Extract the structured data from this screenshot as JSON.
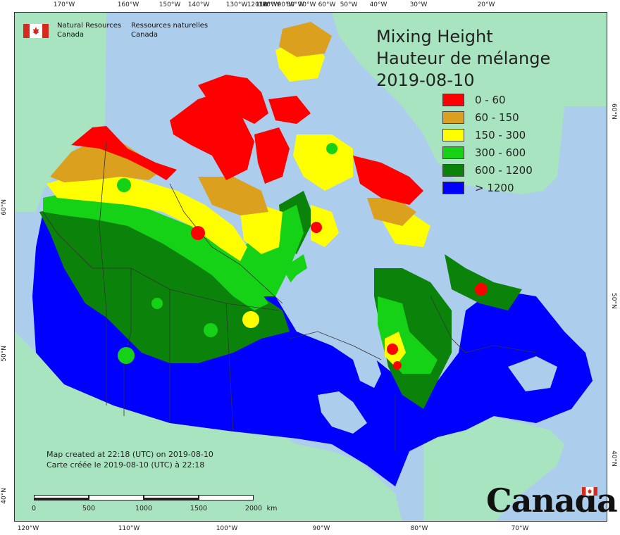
{
  "header": {
    "agency_en": [
      "Natural Resources",
      "Canada"
    ],
    "agency_fr": [
      "Ressources naturelles",
      "Canada"
    ]
  },
  "map": {
    "title": [
      "Mixing Height",
      "Hauteur de mélange",
      "2019-08-10"
    ],
    "legend": [
      {
        "label": "0 - 60",
        "color": "#ff0000"
      },
      {
        "label": "60 - 150",
        "color": "#dba01e"
      },
      {
        "label": "150 - 300",
        "color": "#ffff00"
      },
      {
        "label": "300 - 600",
        "color": "#16d216"
      },
      {
        "label": "600 - 1200",
        "color": "#0b830b"
      },
      {
        "label": "> 1200",
        "color": "#0000ff"
      }
    ],
    "colors": {
      "ocean": "#adcdec",
      "foreign_land": "#a9e4c0",
      "map_border": "#333333"
    },
    "graticule_top": [
      "170°W",
      "160°W",
      "150°W",
      "140°W",
      "130°W",
      "120°W",
      "110°W",
      "100°W",
      "90°W",
      "80°W",
      "70°W",
      "60°W",
      "50°W",
      "40°W",
      "30°W",
      "20°W"
    ],
    "graticule_bottom": [
      "120°W",
      "110°W",
      "100°W",
      "90°W",
      "80°W",
      "70°W"
    ],
    "graticule_left": [
      "60°N",
      "50°N",
      "40°N"
    ],
    "graticule_right": [
      "60°N",
      "50°N",
      "40°N"
    ]
  },
  "credits": {
    "en": "Map created at 22:18 (UTC) on 2019-08-10",
    "fr": "Carte créée le 2019-08-10 (UTC) à 22:18"
  },
  "scalebar": {
    "labels": [
      "0",
      "500",
      "1000",
      "1500",
      "2000"
    ],
    "unit": "km"
  },
  "wordmark": "Canada"
}
